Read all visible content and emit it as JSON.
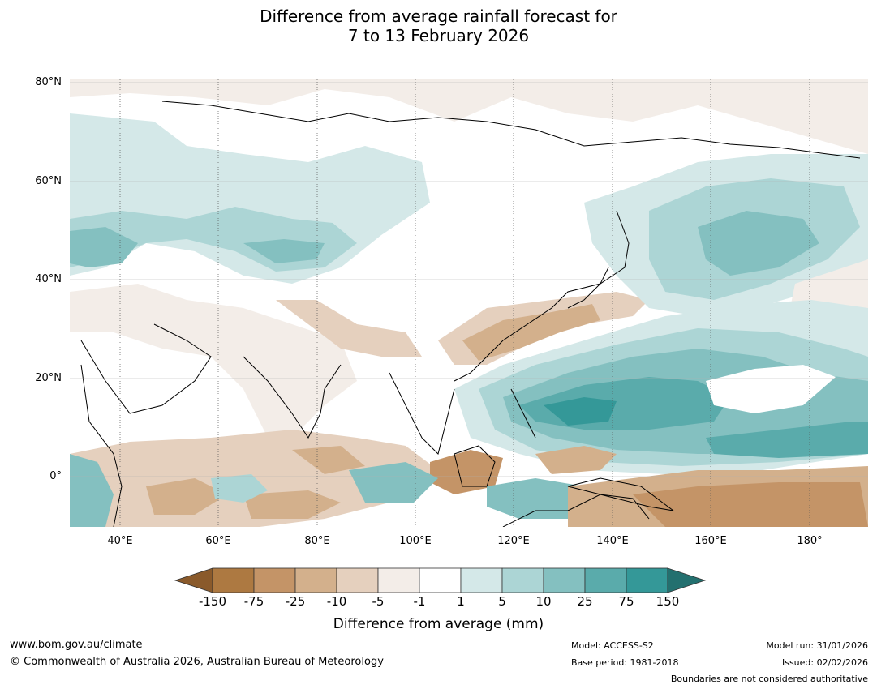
{
  "title": {
    "line1": "Difference from average rainfall forecast for",
    "line2": "7 to 13 February 2026"
  },
  "map": {
    "lat_labels": [
      "80°N",
      "60°N",
      "40°N",
      "20°N",
      "0°"
    ],
    "lon_labels": [
      "40°E",
      "60°E",
      "80°E",
      "100°E",
      "120°E",
      "140°E",
      "160°E",
      "180°"
    ],
    "extent": {
      "lon_min": 30,
      "lon_max": 192,
      "lat_min": -10,
      "lat_max": 80
    }
  },
  "colorbar": {
    "title": "Difference from average (mm)",
    "ticks": [
      "-150",
      "-75",
      "-25",
      "-10",
      "-5",
      "-1",
      "1",
      "5",
      "10",
      "25",
      "75",
      "150"
    ],
    "colors": [
      "#8a5a2b",
      "#ad7941",
      "#c49467",
      "#d3b08c",
      "#e5d0be",
      "#f3ede8",
      "#ffffff",
      "#d4e8e8",
      "#acd5d5",
      "#84c0c0",
      "#5aabab",
      "#349898",
      "#23706f"
    ]
  },
  "footer": {
    "website": "www.bom.gov.au/climate",
    "copyright": "© Commonwealth of Australia 2026, Australian Bureau of Meteorology",
    "model": "Model: ACCESS-S2",
    "base_period": "Base period: 1981-2018",
    "model_run": "Model run: 31/01/2026",
    "issued": "Issued: 02/02/2026",
    "boundaries": "Boundaries are not considered authoritative"
  }
}
